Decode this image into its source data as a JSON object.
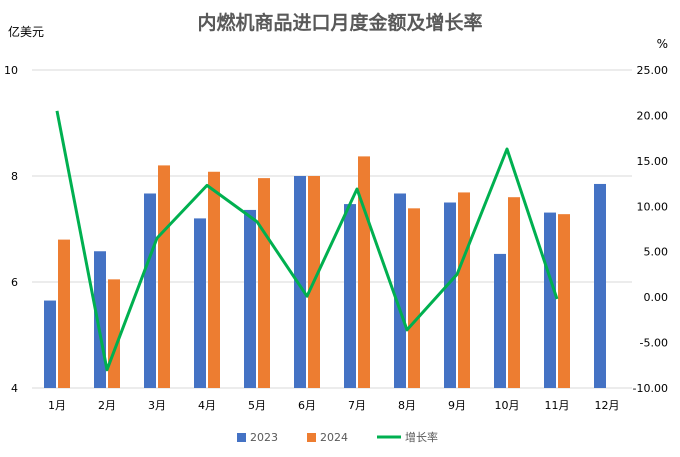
{
  "chart_data": {
    "type": "bar",
    "title": "内燃机商品进口月度金额及增长率",
    "ylabel": "亿美元",
    "y2label": "%",
    "categories": [
      "1月",
      "2月",
      "3月",
      "4月",
      "5月",
      "6月",
      "7月",
      "8月",
      "9月",
      "10月",
      "11月",
      "12月"
    ],
    "ylim": [
      4,
      10
    ],
    "yticks": [
      4,
      6,
      8,
      10
    ],
    "y2lim": [
      -10,
      25
    ],
    "y2ticks": [
      "25.00",
      "20.00",
      "15.00",
      "10.00",
      "5.00",
      "0.00",
      "-5.00",
      "-10.00"
    ],
    "grid": true,
    "legend_position": "bottom",
    "series": [
      {
        "name": "2023",
        "kind": "bar",
        "axis": "left",
        "color": "#4472c4",
        "values": [
          5.65,
          6.58,
          7.67,
          7.2,
          7.36,
          8.0,
          7.47,
          7.67,
          7.5,
          6.53,
          7.31,
          7.85
        ]
      },
      {
        "name": "2024",
        "kind": "bar",
        "axis": "left",
        "color": "#ed7d31",
        "values": [
          6.8,
          6.05,
          8.2,
          8.08,
          7.96,
          8.0,
          8.37,
          7.39,
          7.69,
          7.6,
          7.28,
          null
        ]
      },
      {
        "name": "增长率",
        "kind": "line",
        "axis": "right",
        "color": "#00b050",
        "values": [
          20.5,
          -8.0,
          6.5,
          12.3,
          8.3,
          0.1,
          11.9,
          -3.6,
          2.5,
          16.3,
          -0.2,
          null
        ]
      }
    ]
  }
}
